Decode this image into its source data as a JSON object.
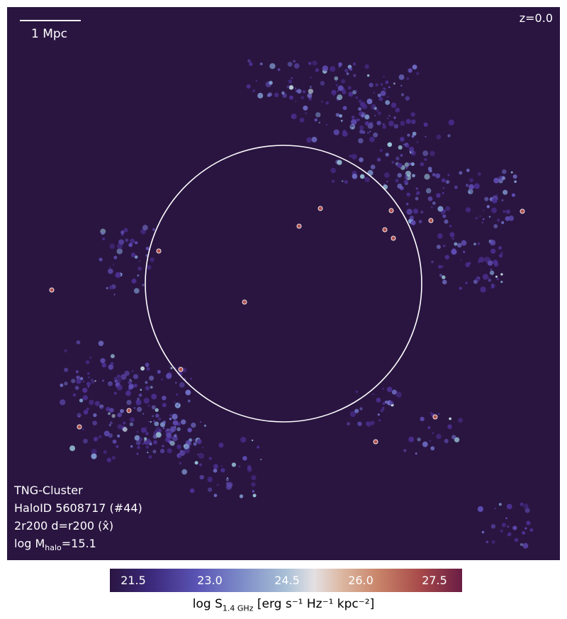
{
  "scalebar": {
    "label": "1 Mpc"
  },
  "redshift": "z=0.0",
  "info": {
    "simulation": "TNG-Cluster",
    "halo_id": "HaloID 5608717 (#44)",
    "projection": "2r200 d=r200 (x̂)",
    "mass_prefix": "log M",
    "mass_sub": "halo",
    "mass_suffix": "=15.1"
  },
  "colorbar": {
    "ticks": [
      "21.5",
      "23.0",
      "24.5",
      "26.0",
      "27.5"
    ],
    "range": [
      20.9,
      28.4
    ],
    "label_prefix": "log S",
    "label_sub": "1.4 GHz",
    "label_units": " [erg s⁻¹ Hz⁻¹ kpc⁻²]",
    "colormap": [
      "#2a1541",
      "#5b55b5",
      "#a9c0d6",
      "#e4e0e3",
      "#c9856a",
      "#6a1d44"
    ]
  },
  "colors": {
    "background": "#2a1541",
    "circle": "#ffffff"
  }
}
